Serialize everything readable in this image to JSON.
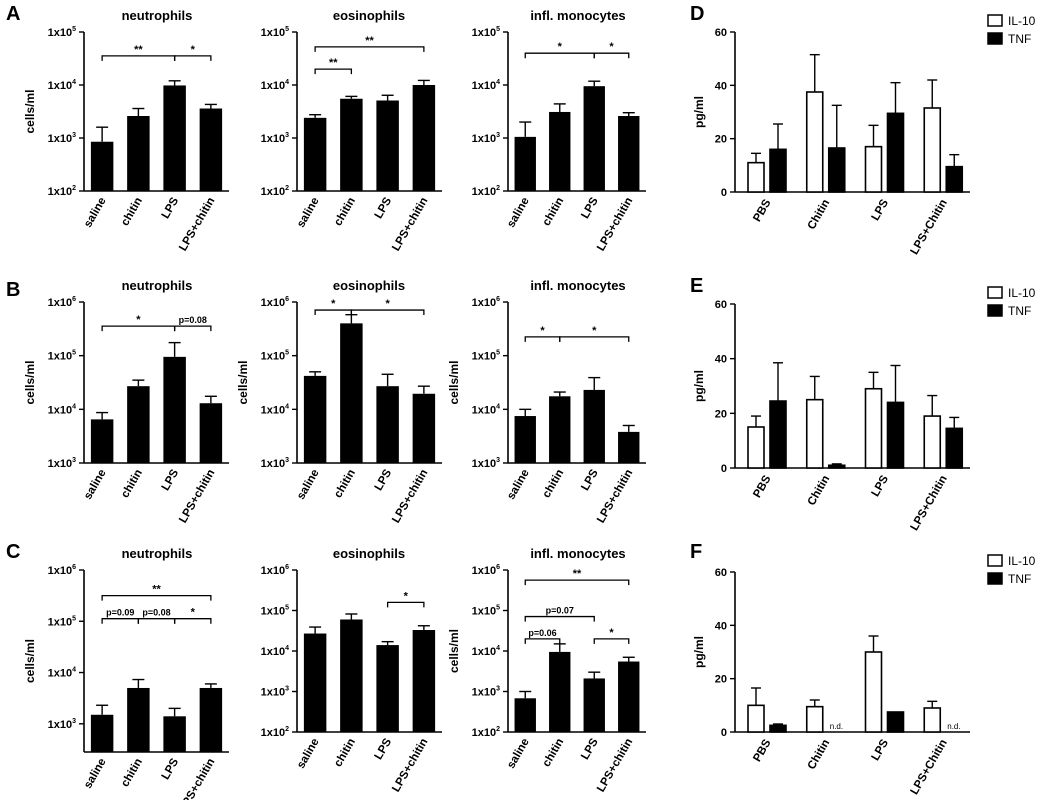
{
  "colors": {
    "bar_fill": "#000000",
    "open_bar_fill": "#ffffff",
    "axis": "#000000"
  },
  "panel_letters": [
    "A",
    "B",
    "C",
    "D",
    "E",
    "F"
  ],
  "chart_data": [
    {
      "id": "A1",
      "type": "bar",
      "log": true,
      "title": "neutrophils",
      "ylabel": "cells/ml",
      "ticks": [
        [
          "1x10",
          "2"
        ],
        [
          "1x10",
          "3"
        ],
        [
          "1x10",
          "4"
        ],
        [
          "1x10",
          "5"
        ]
      ],
      "ylim_exp": [
        2,
        5
      ],
      "categories": [
        "saline",
        "chitin",
        "LPS",
        "LPS+chitin"
      ],
      "values": [
        850,
        2600,
        9800,
        3600
      ],
      "errors": [
        1600,
        3600,
        12000,
        4300
      ],
      "sig": [
        {
          "from": 0,
          "to": 2,
          "label": "**",
          "level": 4.55
        },
        {
          "from": 2,
          "to": 3,
          "label": "*",
          "level": 4.55
        }
      ]
    },
    {
      "id": "A2",
      "type": "bar",
      "log": true,
      "title": "eosinophils",
      "ylabel": "",
      "ticks": [
        [
          "1x10",
          "2"
        ],
        [
          "1x10",
          "3"
        ],
        [
          "1x10",
          "4"
        ],
        [
          "1x10",
          "5"
        ]
      ],
      "ylim_exp": [
        2,
        5
      ],
      "categories": [
        "saline",
        "chitin",
        "LPS",
        "LPS+chitin"
      ],
      "values": [
        2400,
        5500,
        5100,
        10000
      ],
      "errors": [
        2750,
        6100,
        6400,
        12200
      ],
      "sig": [
        {
          "from": 0,
          "to": 3,
          "label": "**",
          "level": 4.72
        },
        {
          "from": 0,
          "to": 1,
          "label": "**",
          "level": 4.3
        }
      ]
    },
    {
      "id": "A3",
      "type": "bar",
      "log": true,
      "title": "infl. monocytes",
      "ylabel": "",
      "ticks": [
        [
          "1x10",
          "2"
        ],
        [
          "1x10",
          "3"
        ],
        [
          "1x10",
          "4"
        ],
        [
          "1x10",
          "5"
        ]
      ],
      "ylim_exp": [
        2,
        5
      ],
      "categories": [
        "saline",
        "chitin",
        "LPS",
        "LPS+chitin"
      ],
      "values": [
        1050,
        3100,
        9500,
        2600
      ],
      "errors": [
        2000,
        4400,
        11800,
        3000
      ],
      "sig": [
        {
          "from": 0,
          "to": 2,
          "label": "*",
          "level": 4.6
        },
        {
          "from": 2,
          "to": 3,
          "label": "*",
          "level": 4.6
        }
      ]
    },
    {
      "id": "B1",
      "type": "bar",
      "log": true,
      "title": "neutrophils",
      "ylabel": "cells/ml",
      "ticks": [
        [
          "1x10",
          "3"
        ],
        [
          "1x10",
          "4"
        ],
        [
          "1x10",
          "5"
        ],
        [
          "1x10",
          "6"
        ]
      ],
      "ylim_exp": [
        3,
        6
      ],
      "categories": [
        "saline",
        "chitin",
        "LPS",
        "LPS+chitin"
      ],
      "values": [
        6500,
        27000,
        95000,
        13000
      ],
      "errors": [
        8700,
        35000,
        175000,
        17500
      ],
      "sig": [
        {
          "from": 0,
          "to": 2,
          "label": "*",
          "level": 5.55
        },
        {
          "from": 2,
          "to": 3,
          "label": "p=0.08",
          "level": 5.55,
          "small": true
        }
      ]
    },
    {
      "id": "B2",
      "type": "bar",
      "log": true,
      "title": "eosinophils",
      "ylabel": "cells/ml",
      "ticks": [
        [
          "1x10",
          "3"
        ],
        [
          "1x10",
          "4"
        ],
        [
          "1x10",
          "5"
        ],
        [
          "1x10",
          "6"
        ]
      ],
      "ylim_exp": [
        3,
        6
      ],
      "categories": [
        "saline",
        "chitin",
        "LPS",
        "LPS+chitin"
      ],
      "values": [
        42000,
        400000,
        27000,
        19500
      ],
      "errors": [
        50000,
        580000,
        45000,
        27000
      ],
      "sig": [
        {
          "from": 0,
          "to": 1,
          "label": "*",
          "level": 5.85
        },
        {
          "from": 1,
          "to": 3,
          "label": "*",
          "level": 5.85
        }
      ]
    },
    {
      "id": "B3",
      "type": "bar",
      "log": true,
      "title": "infl. monocytes",
      "ylabel": "cells/ml",
      "ticks": [
        [
          "1x10",
          "3"
        ],
        [
          "1x10",
          "4"
        ],
        [
          "1x10",
          "5"
        ],
        [
          "1x10",
          "6"
        ]
      ],
      "ylim_exp": [
        3,
        6
      ],
      "categories": [
        "saline",
        "chitin",
        "LPS",
        "LPS+chitin"
      ],
      "values": [
        7500,
        17500,
        23000,
        3800
      ],
      "errors": [
        10000,
        21000,
        39000,
        5000
      ],
      "sig": [
        {
          "from": 0,
          "to": 1,
          "label": "*",
          "level": 5.35
        },
        {
          "from": 1,
          "to": 3,
          "label": "*",
          "level": 5.35
        }
      ]
    },
    {
      "id": "C1",
      "type": "bar",
      "log": true,
      "title": "neutrophils",
      "ylabel": "cells/ml",
      "ticks": [
        [
          "1x10",
          "3"
        ],
        [
          "1x10",
          "4"
        ],
        [
          "1x10",
          "5"
        ],
        [
          "1x10",
          "6"
        ]
      ],
      "ylim_exp": [
        2.45,
        6
      ],
      "categories": [
        "saline",
        "chitin",
        "LPS",
        "LPS+chitin"
      ],
      "values": [
        1500,
        5000,
        1400,
        5000
      ],
      "errors": [
        2300,
        7300,
        2000,
        6000
      ],
      "sig": [
        {
          "from": 0,
          "to": 3,
          "label": "**",
          "level": 5.5
        },
        {
          "from": 0,
          "to": 1,
          "label": "p=0.09",
          "level": 5.05,
          "small": true
        },
        {
          "from": 1,
          "to": 2,
          "label": "p=0.08",
          "level": 5.05,
          "small": true
        },
        {
          "from": 2,
          "to": 3,
          "label": "*",
          "level": 5.05
        }
      ]
    },
    {
      "id": "C2",
      "type": "bar",
      "log": true,
      "title": "eosinophils",
      "ylabel": "",
      "ticks": [
        [
          "1x10",
          "2"
        ],
        [
          "1x10",
          "3"
        ],
        [
          "1x10",
          "4"
        ],
        [
          "1x10",
          "5"
        ],
        [
          "1x10",
          "6"
        ]
      ],
      "ylim_exp": [
        2,
        6
      ],
      "categories": [
        "saline",
        "chitin",
        "LPS",
        "LPS+chitin"
      ],
      "values": [
        27000,
        60000,
        14000,
        33000
      ],
      "errors": [
        39000,
        82000,
        17000,
        42000
      ],
      "sig": [
        {
          "from": 2,
          "to": 3,
          "label": "*",
          "level": 5.2
        }
      ]
    },
    {
      "id": "C3",
      "type": "bar",
      "log": true,
      "title": "infl. monocytes",
      "ylabel": "cells/ml",
      "ticks": [
        [
          "1x10",
          "2"
        ],
        [
          "1x10",
          "3"
        ],
        [
          "1x10",
          "4"
        ],
        [
          "1x10",
          "5"
        ],
        [
          "1x10",
          "6"
        ]
      ],
      "ylim_exp": [
        2,
        6
      ],
      "categories": [
        "saline",
        "chitin",
        "LPS",
        "LPS+chitin"
      ],
      "values": [
        680,
        9500,
        2100,
        5500
      ],
      "errors": [
        1000,
        15000,
        3000,
        7000
      ],
      "sig": [
        {
          "from": 0,
          "to": 3,
          "label": "**",
          "level": 5.75
        },
        {
          "from": 0,
          "to": 2,
          "label": "p=0.07",
          "level": 4.85,
          "small": true
        },
        {
          "from": 0,
          "to": 1,
          "label": "p=0.06",
          "level": 4.3,
          "small": true
        },
        {
          "from": 2,
          "to": 3,
          "label": "*",
          "level": 4.3
        }
      ]
    },
    {
      "id": "D",
      "type": "bar",
      "log": false,
      "title": "",
      "ylabel": "pg/ml",
      "yticks": [
        0,
        20,
        40,
        60
      ],
      "ylim": [
        0,
        60
      ],
      "categories": [
        "PBS",
        "Chitin",
        "LPS",
        "LPS+Chitin"
      ],
      "legend": [
        "IL-10",
        "TNF"
      ],
      "series": [
        {
          "name": "IL-10",
          "values": [
            11,
            37.5,
            17,
            31.5
          ],
          "errors": [
            3.5,
            14,
            8,
            10.5
          ]
        },
        {
          "name": "TNF",
          "values": [
            16,
            16.5,
            29.5,
            9.5
          ],
          "errors": [
            9.5,
            16,
            11.5,
            4.5
          ]
        }
      ],
      "nd": []
    },
    {
      "id": "E",
      "type": "bar",
      "log": false,
      "title": "",
      "ylabel": "pg/ml",
      "yticks": [
        0,
        20,
        40,
        60
      ],
      "ylim": [
        0,
        60
      ],
      "categories": [
        "PBS",
        "Chitin",
        "LPS",
        "LPS+Chitin"
      ],
      "legend": [
        "IL-10",
        "TNF"
      ],
      "series": [
        {
          "name": "IL-10",
          "values": [
            15,
            25,
            29,
            19
          ],
          "errors": [
            4,
            8.5,
            6,
            7.5
          ]
        },
        {
          "name": "TNF",
          "values": [
            24.5,
            1,
            24,
            14.5
          ],
          "errors": [
            14,
            0.5,
            13.5,
            4
          ]
        }
      ],
      "nd": []
    },
    {
      "id": "F",
      "type": "bar",
      "log": false,
      "title": "",
      "ylabel": "pg/ml",
      "yticks": [
        0,
        20,
        40,
        60
      ],
      "ylim": [
        0,
        60
      ],
      "categories": [
        "PBS",
        "Chitin",
        "LPS",
        "LPS+Chitin"
      ],
      "legend": [
        "IL-10",
        "TNF"
      ],
      "series": [
        {
          "name": "IL-10",
          "values": [
            10,
            9.5,
            30,
            9
          ],
          "errors": [
            6.5,
            2.5,
            6,
            2.5
          ]
        },
        {
          "name": "TNF",
          "values": [
            2.5,
            0,
            7.5,
            0
          ],
          "errors": [
            0.5,
            0,
            0,
            0
          ]
        }
      ],
      "nd": [
        "",
        "n.d.",
        "",
        "n.d."
      ]
    }
  ]
}
